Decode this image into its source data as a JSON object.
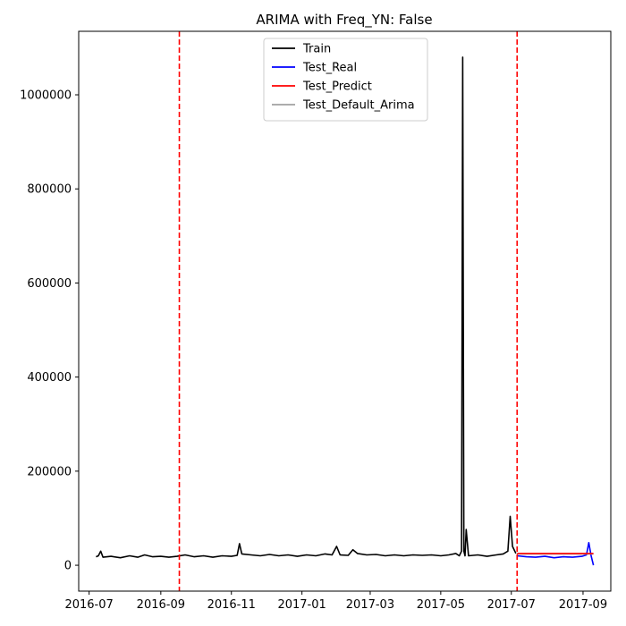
{
  "chart_data": {
    "type": "line",
    "title": "ARIMA with Freq_YN: False",
    "xlabel": "",
    "ylabel": "",
    "xlim": [
      "2016-06-22",
      "2017-09-25"
    ],
    "ylim": [
      -55000,
      1135000
    ],
    "x_ticks": [
      "2016-07",
      "2016-09",
      "2016-11",
      "2017-01",
      "2017-03",
      "2017-05",
      "2017-07",
      "2017-09"
    ],
    "x_tick_dates": [
      "2016-07-01",
      "2016-09-01",
      "2016-11-01",
      "2017-01-01",
      "2017-03-01",
      "2017-05-01",
      "2017-07-01",
      "2017-09-01"
    ],
    "y_ticks": [
      "0",
      "200000",
      "400000",
      "600000",
      "800000",
      "1000000"
    ],
    "y_tick_values": [
      0,
      200000,
      400000,
      600000,
      800000,
      1000000
    ],
    "grid": false,
    "legend_placement": "top-center",
    "vlines": [
      {
        "x": "2016-09-17",
        "color": "#ff0000",
        "style": "dashed"
      },
      {
        "x": "2017-07-06",
        "color": "#ff0000",
        "style": "dashed"
      }
    ],
    "series": [
      {
        "name": "Train",
        "color": "#000000",
        "points": [
          [
            "2016-07-07",
            18000
          ],
          [
            "2016-07-09",
            20000
          ],
          [
            "2016-07-11",
            30000
          ],
          [
            "2016-07-13",
            17000
          ],
          [
            "2016-07-20",
            19000
          ],
          [
            "2016-07-28",
            16000
          ],
          [
            "2016-08-05",
            20000
          ],
          [
            "2016-08-12",
            17000
          ],
          [
            "2016-08-18",
            22000
          ],
          [
            "2016-08-25",
            18000
          ],
          [
            "2016-09-01",
            19000
          ],
          [
            "2016-09-08",
            17000
          ],
          [
            "2016-09-15",
            19000
          ],
          [
            "2016-09-22",
            22000
          ],
          [
            "2016-09-30",
            18000
          ],
          [
            "2016-10-08",
            20000
          ],
          [
            "2016-10-16",
            17000
          ],
          [
            "2016-10-24",
            20000
          ],
          [
            "2016-11-01",
            19000
          ],
          [
            "2016-11-06",
            21000
          ],
          [
            "2016-11-08",
            46000
          ],
          [
            "2016-11-10",
            24000
          ],
          [
            "2016-11-18",
            22000
          ],
          [
            "2016-11-26",
            20000
          ],
          [
            "2016-12-04",
            23000
          ],
          [
            "2016-12-12",
            20000
          ],
          [
            "2016-12-20",
            22000
          ],
          [
            "2016-12-28",
            19000
          ],
          [
            "2017-01-05",
            22000
          ],
          [
            "2017-01-13",
            20000
          ],
          [
            "2017-01-21",
            24000
          ],
          [
            "2017-01-27",
            22000
          ],
          [
            "2017-01-31",
            40000
          ],
          [
            "2017-02-03",
            22000
          ],
          [
            "2017-02-10",
            21000
          ],
          [
            "2017-02-14",
            33000
          ],
          [
            "2017-02-18",
            25000
          ],
          [
            "2017-02-26",
            22000
          ],
          [
            "2017-03-06",
            23000
          ],
          [
            "2017-03-14",
            20000
          ],
          [
            "2017-03-22",
            22000
          ],
          [
            "2017-03-30",
            20000
          ],
          [
            "2017-04-07",
            22000
          ],
          [
            "2017-04-15",
            21000
          ],
          [
            "2017-04-23",
            22000
          ],
          [
            "2017-05-01",
            20000
          ],
          [
            "2017-05-08",
            22000
          ],
          [
            "2017-05-14",
            25000
          ],
          [
            "2017-05-17",
            20000
          ],
          [
            "2017-05-19",
            30000
          ],
          [
            "2017-05-20",
            1080000
          ],
          [
            "2017-05-21",
            30000
          ],
          [
            "2017-05-22",
            20000
          ],
          [
            "2017-05-23",
            76000
          ],
          [
            "2017-05-25",
            20000
          ],
          [
            "2017-06-02",
            22000
          ],
          [
            "2017-06-10",
            19000
          ],
          [
            "2017-06-18",
            22000
          ],
          [
            "2017-06-24",
            24000
          ],
          [
            "2017-06-28",
            30000
          ],
          [
            "2017-06-30",
            104000
          ],
          [
            "2017-07-02",
            40000
          ],
          [
            "2017-07-05",
            25000
          ]
        ]
      },
      {
        "name": "Test_Real",
        "color": "#0000ff",
        "points": [
          [
            "2017-07-06",
            20000
          ],
          [
            "2017-07-14",
            18000
          ],
          [
            "2017-07-22",
            17000
          ],
          [
            "2017-07-30",
            19000
          ],
          [
            "2017-08-07",
            16000
          ],
          [
            "2017-08-15",
            18000
          ],
          [
            "2017-08-23",
            17000
          ],
          [
            "2017-08-31",
            19000
          ],
          [
            "2017-09-04",
            22000
          ],
          [
            "2017-09-06",
            48000
          ],
          [
            "2017-09-08",
            20000
          ],
          [
            "2017-09-10",
            0
          ]
        ]
      },
      {
        "name": "Test_Predict",
        "color": "#ff0000",
        "points": [
          [
            "2017-07-06",
            25000
          ],
          [
            "2017-09-10",
            25000
          ]
        ]
      },
      {
        "name": "Test_Default_Arima",
        "color": "#a0a0a0",
        "points": [
          [
            "2017-07-06",
            24000
          ],
          [
            "2017-09-10",
            24000
          ]
        ]
      }
    ]
  }
}
